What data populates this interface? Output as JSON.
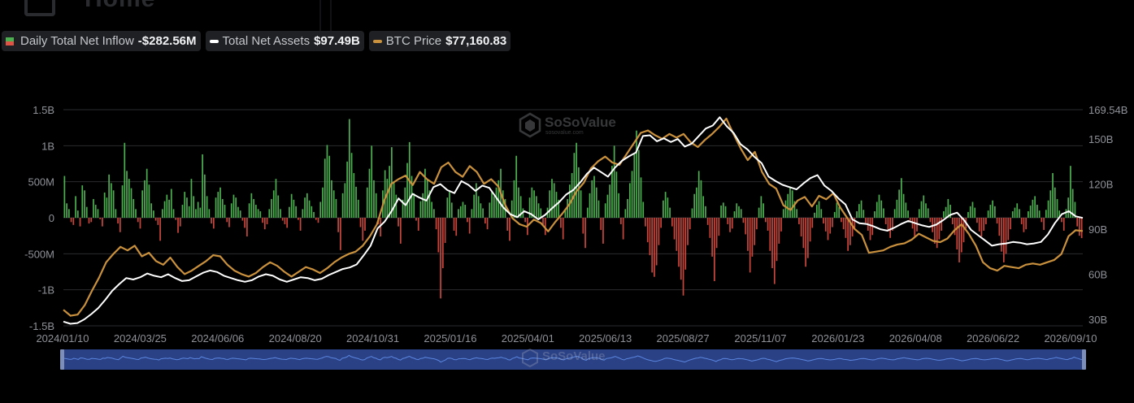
{
  "background": {
    "nav_title": "Home"
  },
  "legend": [
    {
      "label": "Daily Total Net Inflow",
      "value": "-$282.56M",
      "kind": "bars",
      "colors": [
        "#4caf50",
        "#e05243"
      ]
    },
    {
      "label": "Total Net Assets",
      "value": "$97.49B",
      "kind": "line",
      "color": "#ffffff"
    },
    {
      "label": "BTC Price",
      "value": "$77,160.83",
      "kind": "line",
      "color": "#c9913d"
    }
  ],
  "watermark": {
    "brand": "SoSoValue",
    "sub": "sosovalue.com"
  },
  "colors": {
    "inflow_positive": "#4caf50",
    "inflow_negative": "#c8463c",
    "net_assets": "#ffffff",
    "btc_price": "#c9913d",
    "grid": "#2a2b2e",
    "navigator_fill": "#2f4a8c",
    "navigator_line": "#4f7bd8"
  },
  "chart_data": {
    "type": "bar+line",
    "grid": true,
    "x_ticks": [
      "2024/01/10",
      "2024/03/25",
      "2024/06/06",
      "2024/08/20",
      "2024/10/31",
      "2025/01/16",
      "2025/04/01",
      "2025/06/13",
      "2025/08/27",
      "2025/11/07",
      "2026/01/23",
      "2026/04/08",
      "2026/06/22",
      "2026/09/10"
    ],
    "y_left": {
      "ticks": [
        "1.5B",
        "1B",
        "500M",
        "0",
        "-500M",
        "-1B",
        "-1.5B"
      ],
      "range": [
        -1500000000,
        1500000000
      ]
    },
    "y_right": {
      "ticks": [
        "169.54B",
        "150B",
        "120B",
        "90B",
        "60B",
        "30B"
      ],
      "top_label_value": 169.54
    },
    "series": [
      {
        "name": "Daily Total Net Inflow",
        "kind": "bar",
        "unit": "USD",
        "values": [
          580,
          200,
          120,
          -60,
          -100,
          300,
          100,
          -120,
          450,
          380,
          150,
          -80,
          -60,
          260,
          180,
          120,
          -20,
          -120,
          350,
          280,
          600,
          480,
          380,
          120,
          -80,
          -200,
          450,
          1040,
          650,
          540,
          410,
          260,
          120,
          -60,
          -150,
          380,
          520,
          680,
          460,
          200,
          100,
          -40,
          -100,
          -320,
          120,
          230,
          320,
          250,
          400,
          120,
          -30,
          -210,
          -120,
          180,
          360,
          280,
          160,
          540,
          300,
          120,
          220,
          140,
          880,
          600,
          300,
          120,
          -80,
          -150,
          280,
          360,
          420,
          260,
          180,
          -60,
          -130,
          200,
          320,
          280,
          150,
          100,
          -40,
          -140,
          -260,
          200,
          340,
          260,
          180,
          120,
          90,
          -70,
          -160,
          -90,
          120,
          260,
          380,
          540,
          310,
          120,
          -40,
          -90,
          -140,
          150,
          330,
          250,
          160,
          -30,
          -180,
          120,
          280,
          340,
          240,
          160,
          80,
          -30,
          -70,
          220,
          420,
          820,
          1010,
          860,
          520,
          380,
          260,
          -200,
          -450,
          340,
          480,
          780,
          1370,
          900,
          620,
          430,
          250,
          -130,
          -320,
          -180,
          420,
          680,
          1000,
          520,
          340,
          -90,
          -260,
          380,
          660,
          540,
          720,
          980,
          500,
          320,
          -120,
          -360,
          250,
          420,
          760,
          1050,
          580,
          340,
          -40,
          -180,
          230,
          340,
          680,
          540,
          380,
          220,
          120,
          -160,
          -480,
          -1120,
          -700,
          -350,
          280,
          360,
          210,
          -180,
          -250,
          120,
          160,
          220,
          180,
          -60,
          -220,
          120,
          320,
          480,
          300,
          200,
          130,
          -80,
          -160,
          210,
          360,
          300,
          420,
          520,
          680,
          380,
          260,
          -180,
          -320,
          240,
          520,
          860,
          420,
          300,
          130,
          -60,
          -240,
          280,
          420,
          380,
          300,
          200,
          130,
          -100,
          -240,
          140,
          380,
          540,
          480,
          360,
          250,
          -140,
          -300,
          120,
          260,
          460,
          620,
          900,
          1040,
          700,
          380,
          -220,
          -420,
          140,
          340,
          520,
          580,
          420,
          240,
          -170,
          -360,
          200,
          320,
          460,
          720,
          1000,
          640,
          340,
          -90,
          -300,
          120,
          260,
          480,
          650,
          880,
          1210,
          940,
          560,
          220,
          -120,
          -340,
          -520,
          -760,
          -820,
          -660,
          -380,
          -140,
          240,
          360,
          280,
          140,
          -120,
          -300,
          -460,
          -680,
          -860,
          -1080,
          -720,
          -380,
          -160,
          130,
          330,
          420,
          650,
          520,
          300,
          160,
          -100,
          -280,
          -540,
          -880,
          -420,
          -250,
          170,
          210,
          160,
          -90,
          -200,
          -150,
          90,
          200,
          160,
          120,
          -70,
          -230,
          -460,
          -760,
          -540,
          -380,
          -160,
          140,
          300,
          200,
          -60,
          -180,
          -460,
          -700,
          -920,
          -600,
          -360,
          -190,
          120,
          240,
          330,
          430,
          380,
          230,
          120,
          -90,
          -260,
          -420,
          -680,
          -560,
          -330,
          -140,
          70,
          180,
          230,
          120,
          -80,
          -190,
          -310,
          -220,
          -130,
          80,
          210,
          150,
          -60,
          -160,
          -280,
          -460,
          -380,
          -260,
          -140,
          90,
          190,
          240,
          110,
          -70,
          -180,
          -310,
          -240,
          90,
          220,
          320,
          240,
          130,
          -90,
          -190,
          -280,
          -180,
          120,
          250,
          390,
          550,
          330,
          210,
          100,
          -40,
          -150,
          -270,
          -190,
          120,
          230,
          310,
          200,
          130,
          -60,
          -200,
          -360,
          -420,
          -300,
          -180,
          90,
          150,
          260,
          180,
          -90,
          -240,
          -440,
          -620,
          -480,
          -340,
          -150,
          80,
          160,
          220,
          140,
          -70,
          -190,
          -260,
          -180,
          -90,
          100,
          180,
          240,
          160,
          -80,
          -250,
          -470,
          -620,
          -500,
          -310,
          -160,
          90,
          140,
          200,
          120,
          -90,
          -200,
          -160,
          90,
          170,
          250,
          300,
          180,
          100,
          -60,
          -170,
          110,
          240,
          380,
          620,
          420,
          260,
          100,
          -60,
          -180,
          120,
          280,
          720,
          400,
          220,
          -120,
          -250,
          -282.56
        ],
        "values_unit_note": "values are in millions of USD as read against the left axis"
      },
      {
        "name": "Total Net Assets",
        "kind": "line",
        "axis": "right",
        "unit": "B USD",
        "values": [
          28.5,
          27.0,
          27.5,
          30.0,
          33.5,
          37.5,
          43.0,
          49.0,
          53.5,
          57.5,
          56.5,
          58.0,
          60.5,
          59.0,
          58.0,
          60.0,
          57.5,
          55.5,
          56.0,
          58.5,
          61.0,
          62.5,
          61.5,
          59.0,
          57.5,
          56.0,
          55.0,
          56.0,
          58.5,
          60.0,
          59.0,
          56.5,
          55.0,
          56.5,
          58.0,
          57.5,
          56.0,
          57.0,
          59.5,
          61.5,
          63.5,
          64.5,
          66.5,
          72.5,
          79.0,
          90.5,
          95.0,
          102.0,
          110.5,
          106.0,
          113.5,
          111.0,
          109.0,
          118.0,
          120.0,
          116.0,
          114.0,
          122.0,
          119.5,
          115.5,
          119.0,
          117.5,
          111.0,
          104.5,
          100.0,
          98.0,
          102.0,
          100.0,
          96.5,
          99.5,
          104.0,
          108.0,
          113.0,
          116.0,
          121.0,
          127.0,
          131.0,
          128.0,
          125.0,
          131.0,
          135.5,
          138.5,
          141.0,
          152.0,
          152.5,
          148.5,
          150.5,
          148.0,
          150.0,
          145.0,
          147.0,
          152.0,
          157.0,
          159.0,
          164.5,
          158.5,
          154.0,
          146.5,
          143.0,
          138.0,
          134.0,
          125.0,
          122.0,
          119.5,
          118.0,
          116.5,
          120.5,
          124.0,
          126.0,
          119.0,
          115.5,
          110.5,
          106.5,
          96.5,
          94.0,
          93.5,
          92.0,
          90.0,
          89.0,
          91.0,
          93.5,
          95.5,
          94.0,
          92.5,
          91.5,
          93.0,
          96.0,
          99.5,
          101.0,
          96.0,
          89.5,
          86.0,
          82.5,
          79.0,
          80.0,
          80.5,
          81.5,
          81.0,
          80.0,
          80.5,
          81.5,
          86.5,
          94.0,
          100.0,
          102.0,
          98.5,
          97.49
        ]
      },
      {
        "name": "BTC Price",
        "kind": "line",
        "axis": "right",
        "unit": "USD",
        "values": [
          44000,
          41500,
          42000,
          46000,
          52000,
          57500,
          64000,
          67500,
          70500,
          69000,
          71000,
          66500,
          68000,
          64500,
          63000,
          66000,
          62000,
          59000,
          60500,
          62500,
          64500,
          67000,
          66500,
          63000,
          60500,
          59000,
          58000,
          59500,
          62000,
          64000,
          62500,
          60000,
          58000,
          60000,
          62000,
          61000,
          59500,
          61500,
          64000,
          66000,
          67500,
          68500,
          71000,
          75000,
          80000,
          90000,
          97000,
          99000,
          100500,
          96500,
          102000,
          99000,
          97000,
          104000,
          106000,
          102000,
          100000,
          104500,
          102000,
          97000,
          99000,
          96000,
          88000,
          82500,
          80000,
          79000,
          82000,
          80500,
          77000,
          81000,
          84500,
          88500,
          94000,
          97500,
          103500,
          106500,
          108500,
          106000,
          105000,
          109500,
          114000,
          118500,
          119500,
          117500,
          116000,
          118000,
          116500,
          118000,
          114500,
          112500,
          115500,
          118000,
          121000,
          124500,
          118000,
          112000,
          107000,
          110500,
          102000,
          97000,
          95000,
          88000,
          86000,
          90000,
          91500,
          87500,
          92000,
          90500,
          93000,
          87000,
          82500,
          78000,
          75500,
          68000,
          68500,
          69000,
          70500,
          71500,
          72000,
          73500,
          76000,
          74500,
          73000,
          72500,
          74000,
          77500,
          80000,
          76000,
          71000,
          64000,
          61500,
          60500,
          62500,
          62000,
          61500,
          63000,
          63500,
          63000,
          64000,
          65000,
          67500,
          75000,
          77500,
          77160.83
        ]
      }
    ]
  }
}
